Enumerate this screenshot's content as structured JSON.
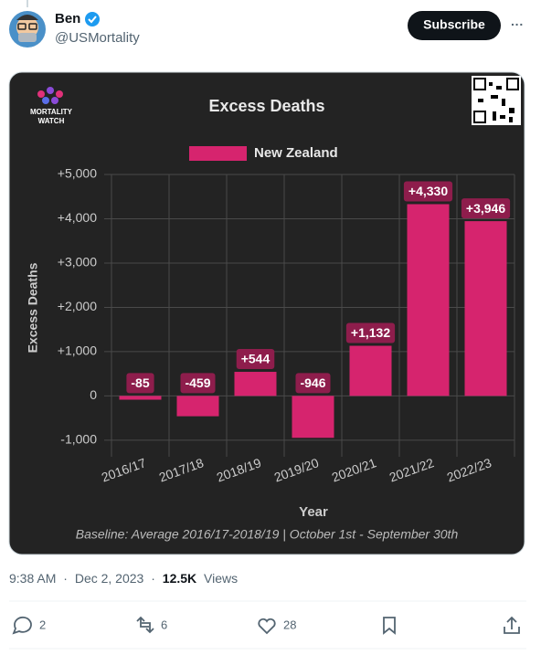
{
  "tweet": {
    "author": {
      "name": "Ben",
      "handle": "@USMortality"
    },
    "subscribe": "Subscribe",
    "more": "···",
    "meta": {
      "time": "9:38 AM",
      "separator": "·",
      "date": "Dec 2, 2023",
      "views": "12.5K",
      "views_label": "Views"
    },
    "actions": {
      "replies": 2,
      "reposts": 6,
      "likes": 28
    }
  },
  "chart_data": {
    "type": "bar",
    "logo_lines": [
      "MORTALITY",
      "WATCH"
    ],
    "title": "Excess Deaths",
    "categories": [
      "2016/17",
      "2017/18",
      "2018/19",
      "2019/20",
      "2020/21",
      "2021/22",
      "2022/23"
    ],
    "series": [
      {
        "name": "New Zealand",
        "color": "#d6246e",
        "values": [
          -85,
          -459,
          544,
          -946,
          1132,
          4330,
          3946
        ],
        "value_labels": [
          "-85",
          "-459",
          "+544",
          "-946",
          "+1,132",
          "+4,330",
          "+3,946"
        ]
      }
    ],
    "ylim": [
      -1250,
      5000
    ],
    "yticks": [
      {
        "value": -1000,
        "label": "-1,000"
      },
      0,
      {
        "value": 1000,
        "label": "+1,000"
      },
      {
        "value": 2000,
        "label": "+2,000"
      },
      {
        "value": 3000,
        "label": "+3,000"
      },
      {
        "value": 4000,
        "label": "+4,000"
      },
      {
        "value": 5000,
        "label": "+5,000"
      }
    ],
    "grid": true,
    "x_label": "Year",
    "y_label": "Excess Deaths",
    "caption": "Baseline: Average 2016/17-2018/19 | October 1st - September 30th"
  }
}
